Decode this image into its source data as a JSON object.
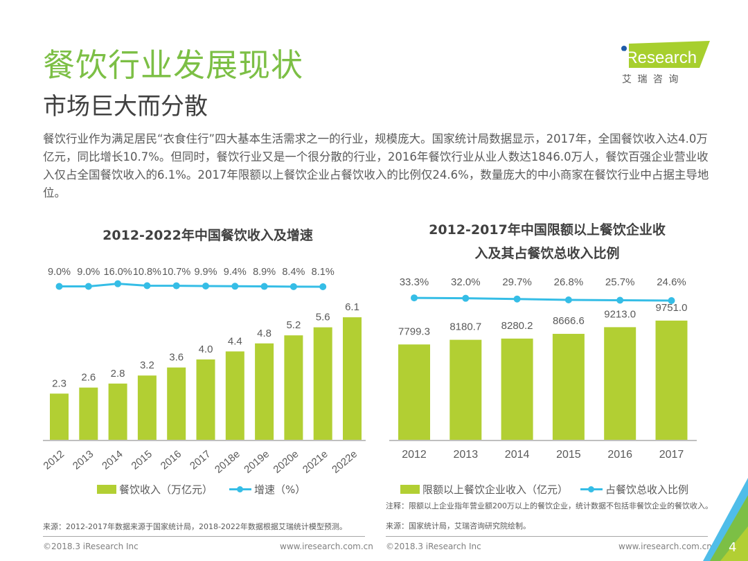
{
  "header": {
    "title": "餐饮行业发展现状",
    "subtitle": "市场巨大而分散",
    "logo_text": "iResearch",
    "logo_cn": "艾 瑞 咨 询"
  },
  "body_text": "餐饮行业作为满足居民“衣食住行”四大基本生活需求之一的行业，规模庞大。国家统计局数据显示，2017年，全国餐饮收入达4.0万亿元，同比增长10.7%。但同时，餐饮行业又是一个很分散的行业，2016年餐饮行业从业人数达1846.0万人，餐饮百强企业营业收入仅占全国餐饮收入的6.1%。2017年限额以上餐饮企业占餐饮收入的比例仅24.6%，数量庞大的中小商家在餐饮行业中占据主导地位。",
  "colors": {
    "title_green": "#7cbf45",
    "bar_green": "#b2cf33",
    "line_blue": "#35bde6"
  },
  "chart_data": [
    {
      "type": "bar",
      "title": "2012-2022年中国餐饮收入及增速",
      "categories": [
        "2012",
        "2013",
        "2014",
        "2015",
        "2016",
        "2017",
        "2018e",
        "2019e",
        "2020e",
        "2021e",
        "2022e"
      ],
      "series": [
        {
          "name": "餐饮收入（万亿元）",
          "kind": "bar",
          "values": [
            2.3,
            2.6,
            2.8,
            3.2,
            3.6,
            4.0,
            4.4,
            4.8,
            5.2,
            5.6,
            6.1
          ],
          "labels": [
            "2.3",
            "2.6",
            "2.8",
            "3.2",
            "3.6",
            "4.0",
            "4.4",
            "4.8",
            "5.2",
            "5.6",
            "6.1"
          ]
        },
        {
          "name": "增速（%）",
          "kind": "line",
          "values": [
            9.0,
            9.0,
            16.0,
            10.8,
            10.7,
            9.9,
            9.4,
            8.9,
            8.4,
            8.1
          ],
          "labels": [
            "9.0%",
            "9.0%",
            "16.0%",
            "10.8%",
            "10.7%",
            "9.9%",
            "9.4%",
            "8.9%",
            "8.4%",
            "8.1%"
          ]
        }
      ],
      "legend": [
        "餐饮收入（万亿元）",
        "增速（%）"
      ],
      "legend_position": "bottom",
      "source": "来源：2012-2017年数据来源于国家统计局，2018-2022年数据根据艾瑞统计模型预测。"
    },
    {
      "type": "bar",
      "title_line1": "2012-2017年中国限额以上餐饮企业收",
      "title_line2": "入及其占餐饮总收入比例",
      "categories": [
        "2012",
        "2013",
        "2014",
        "2015",
        "2016",
        "2017"
      ],
      "series": [
        {
          "name": "限额以上餐饮企业收入（亿元）",
          "kind": "bar",
          "values": [
            7799.3,
            8180.7,
            8280.2,
            8666.6,
            9213.0,
            9751.0
          ],
          "labels": [
            "7799.3",
            "8180.7",
            "8280.2",
            "8666.6",
            "9213.0",
            "9751.0"
          ]
        },
        {
          "name": "占餐饮总收入比例",
          "kind": "line",
          "values": [
            33.3,
            32.0,
            29.7,
            26.8,
            25.7,
            24.6
          ],
          "labels": [
            "33.3%",
            "32.0%",
            "29.7%",
            "26.8%",
            "25.7%",
            "24.6%"
          ]
        }
      ],
      "legend": [
        "限额以上餐饮企业收入（亿元）",
        "占餐饮总收入比例"
      ],
      "legend_position": "bottom",
      "note": "注释：限额以上企业指年营业额200万以上的餐饮企业，统计数据不包括非餐饮企业的餐饮收入。",
      "source": "来源：国家统计局，艾瑞咨询研究院绘制。"
    }
  ],
  "footer": {
    "copyright": "©2018.3 iResearch Inc",
    "website": "www.iresearch.com.cn",
    "page_number": "4"
  }
}
